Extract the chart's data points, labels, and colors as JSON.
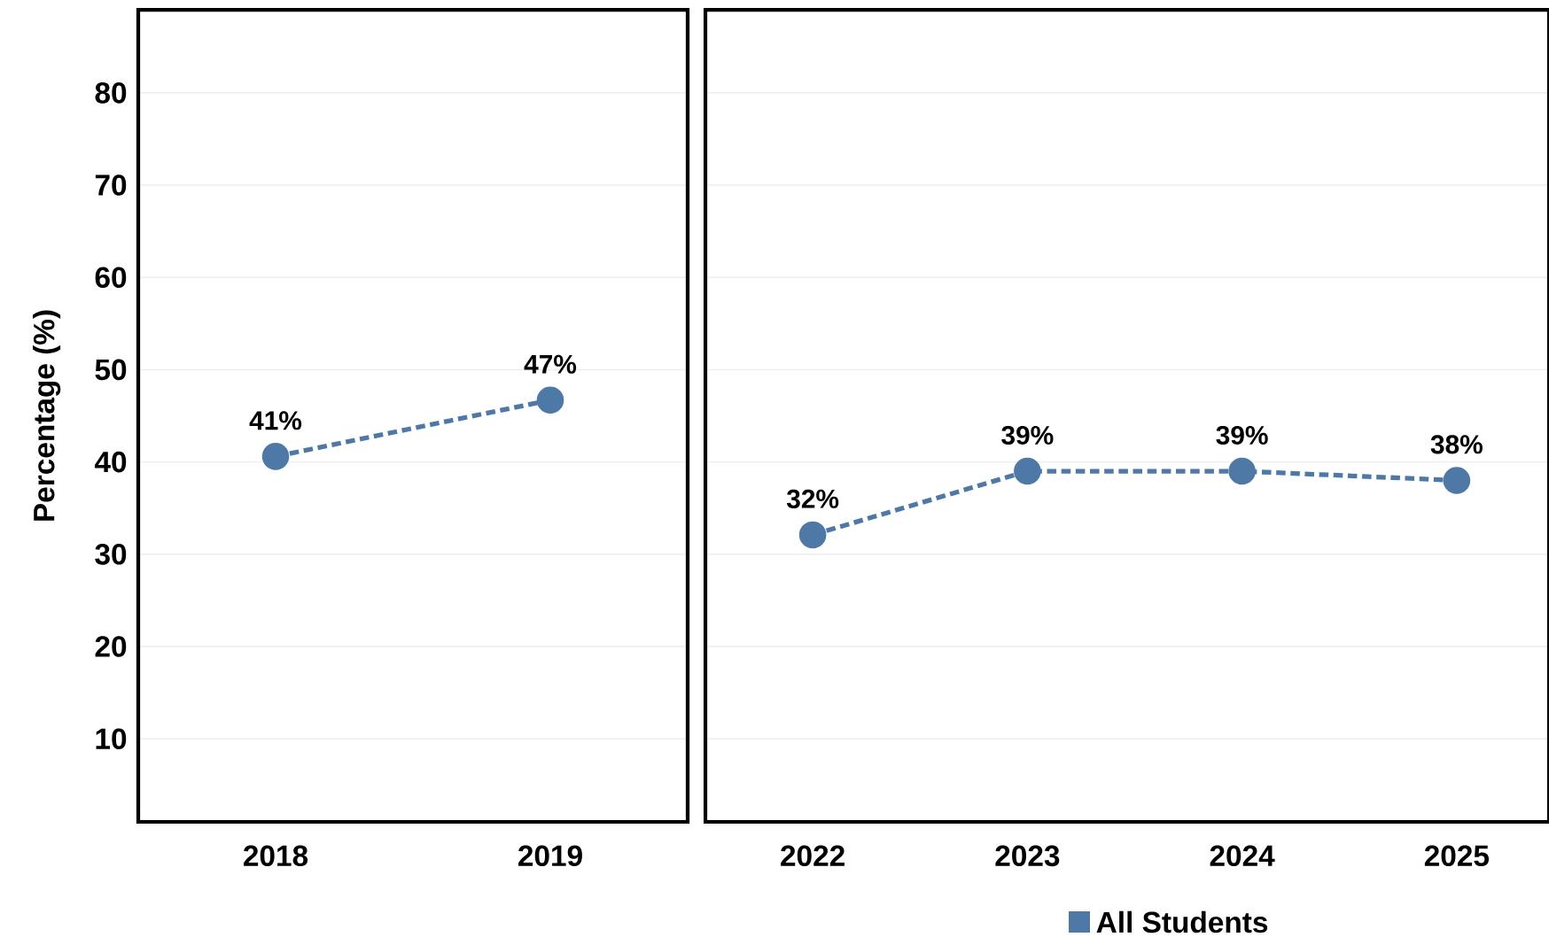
{
  "chart_data": [
    {
      "type": "line",
      "ylabel": "Percentage (%)",
      "categories": [
        "2018",
        "2019"
      ],
      "ylim": [
        1,
        89
      ],
      "yticks": [
        10,
        20,
        30,
        40,
        50,
        60,
        70,
        80
      ],
      "grid": "y",
      "marker": "circle",
      "line_style": "dashed",
      "color": "#4e79a7",
      "values": [
        40.6,
        46.7
      ],
      "value_labels": [
        "41%",
        "47%"
      ]
    },
    {
      "type": "line",
      "categories": [
        "2022",
        "2023",
        "2024",
        "2025"
      ],
      "ylim": [
        1,
        89
      ],
      "yticks": [
        10,
        20,
        30,
        40,
        50,
        60,
        70,
        80
      ],
      "tick_labels": "x",
      "grid": "y",
      "marker": "circle",
      "line_style": "dashed",
      "legend": "bottom",
      "series": [
        {
          "name": "All Students",
          "color": "#4e79a7",
          "values": [
            32.1,
            39,
            39,
            38
          ],
          "value_labels": [
            "32%",
            "39%",
            "39%",
            "38%"
          ]
        }
      ]
    }
  ]
}
